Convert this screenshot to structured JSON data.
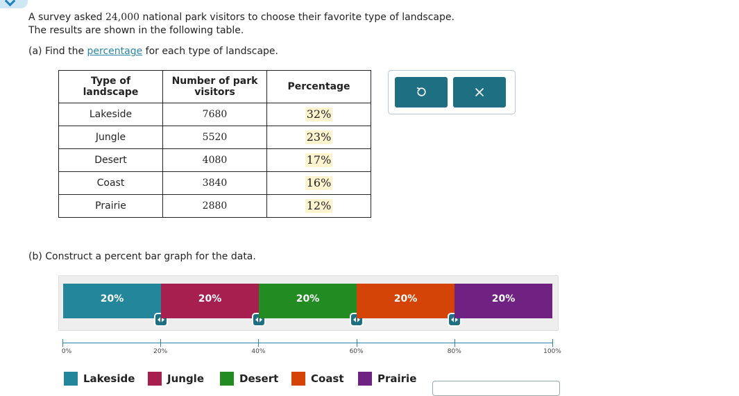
{
  "intro": {
    "line1_before": "A survey asked ",
    "line1_number": "24,000",
    "line1_after": " national park visitors to choose their favorite type of landscape.",
    "line2": "The results are shown in the following table."
  },
  "part_a": {
    "before": "(a) Find the ",
    "link": "percentage",
    "after": " for each type of landscape."
  },
  "table": {
    "headers": {
      "type": "Type of\nlandscape",
      "visitors": "Number of park\nvisitors",
      "percentage": "Percentage"
    },
    "rows": [
      {
        "type": "Lakeside",
        "visitors": "7680",
        "percentage": "32%"
      },
      {
        "type": "Jungle",
        "visitors": "5520",
        "percentage": "23%"
      },
      {
        "type": "Desert",
        "visitors": "4080",
        "percentage": "17%"
      },
      {
        "type": "Coast",
        "visitors": "3840",
        "percentage": "16%"
      },
      {
        "type": "Prairie",
        "visitors": "2880",
        "percentage": "12%"
      }
    ]
  },
  "actions": {
    "undo_icon": "undo-icon",
    "close_icon": "close-icon",
    "button_color": "#1f6f83"
  },
  "part_b": {
    "text": "(b) Construct a percent bar graph for the data."
  },
  "bar_graph": {
    "segments": [
      {
        "name": "Lakeside",
        "percent": 20,
        "label": "20%",
        "color": "#23869b"
      },
      {
        "name": "Jungle",
        "percent": 20,
        "label": "20%",
        "color": "#a61f4f"
      },
      {
        "name": "Desert",
        "percent": 20,
        "label": "20%",
        "color": "#228b22"
      },
      {
        "name": "Coast",
        "percent": 20,
        "label": "20%",
        "color": "#d44406"
      },
      {
        "name": "Prairie",
        "percent": 20,
        "label": "20%",
        "color": "#702283"
      }
    ],
    "axis_ticks": [
      "0%",
      "20%",
      "40%",
      "60%",
      "80%",
      "100%"
    ]
  },
  "legend": [
    {
      "label": "Lakeside",
      "color": "#23869b"
    },
    {
      "label": "Jungle",
      "color": "#a61f4f"
    },
    {
      "label": "Desert",
      "color": "#228b22"
    },
    {
      "label": "Coast",
      "color": "#d44406"
    },
    {
      "label": "Prairie",
      "color": "#702283"
    }
  ]
}
